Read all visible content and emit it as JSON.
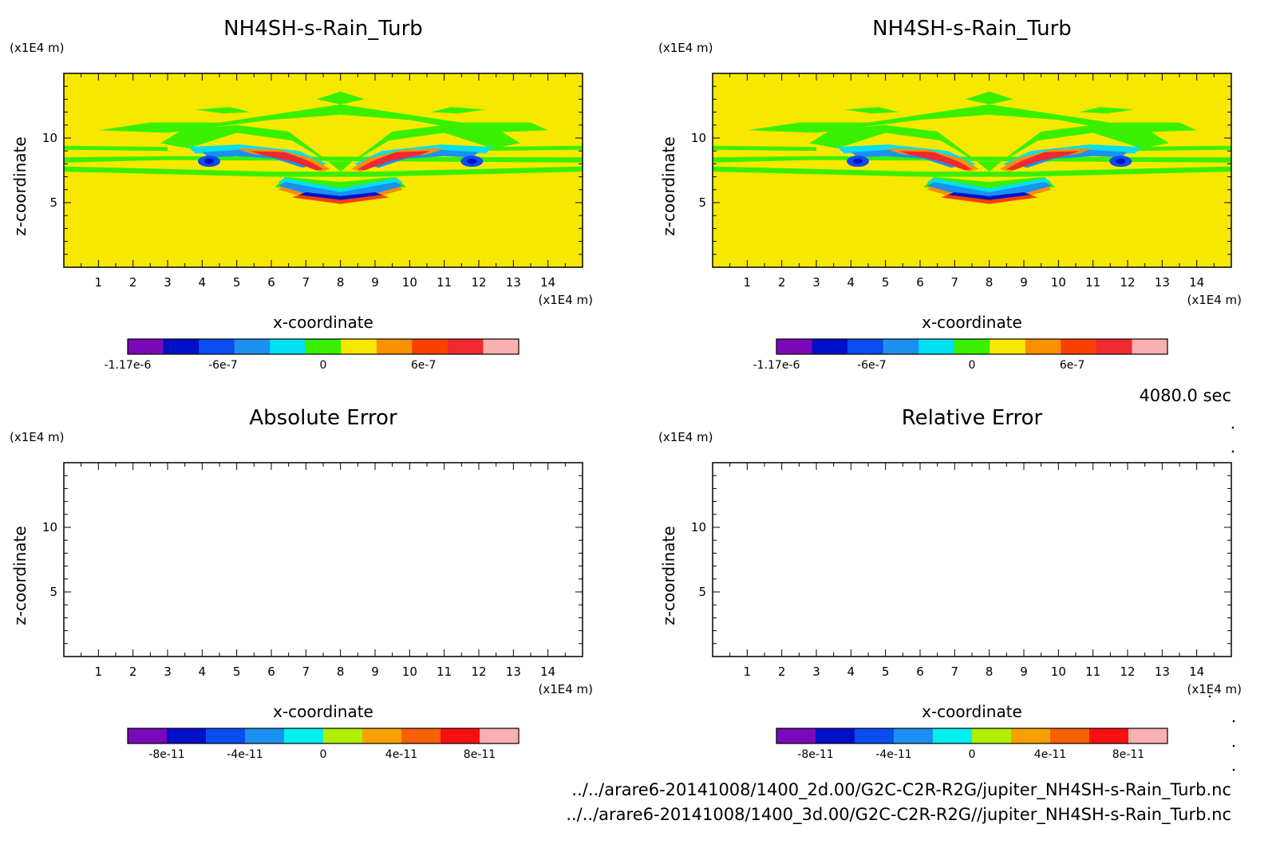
{
  "chart_data": [
    {
      "type": "heatmap",
      "title": "NH4SH-s-Rain_Turb",
      "xlabel": "x-coordinate",
      "ylabel": "z-coordinate",
      "x_unit": "(x1E4 m)",
      "y_unit": "(x1E4 m)",
      "xlim": [
        0,
        15
      ],
      "ylim": [
        0,
        15
      ],
      "x_ticks": [
        1,
        2,
        3,
        4,
        5,
        6,
        7,
        8,
        9,
        10,
        11,
        12,
        13,
        14
      ],
      "y_ticks": [
        5,
        10
      ],
      "colorbar": {
        "colors": [
          "#7a0ab8",
          "#0010c8",
          "#0a4cf0",
          "#1c90f0",
          "#00e0f0",
          "#38f000",
          "#f8e800",
          "#f89000",
          "#f84000",
          "#f02830",
          "#f8b0b0"
        ],
        "labels": [
          "-1.17e-6",
          "-6e-7",
          "0",
          "6e-7"
        ],
        "label_levels": [
          -1.17e-06,
          -6e-07,
          0,
          6e-07
        ],
        "range": [
          -1.17e-06,
          1.17e-06
        ]
      },
      "background_level": "0"
    },
    {
      "type": "heatmap",
      "title": "NH4SH-s-Rain_Turb",
      "xlabel": "x-coordinate",
      "ylabel": "z-coordinate",
      "x_unit": "(x1E4 m)",
      "y_unit": "(x1E4 m)",
      "xlim": [
        0,
        15
      ],
      "ylim": [
        0,
        15
      ],
      "x_ticks": [
        1,
        2,
        3,
        4,
        5,
        6,
        7,
        8,
        9,
        10,
        11,
        12,
        13,
        14
      ],
      "y_ticks": [
        5,
        10
      ],
      "colorbar": {
        "colors": [
          "#7a0ab8",
          "#0010c8",
          "#0a4cf0",
          "#1c90f0",
          "#00e0f0",
          "#38f000",
          "#f8e800",
          "#f89000",
          "#f84000",
          "#f02830",
          "#f8b0b0"
        ],
        "labels": [
          "-1.17e-6",
          "-6e-7",
          "0",
          "6e-7"
        ],
        "label_levels": [
          -1.17e-06,
          -6e-07,
          0,
          6e-07
        ],
        "range": [
          -1.17e-06,
          1.17e-06
        ]
      },
      "background_level": "0"
    },
    {
      "type": "heatmap",
      "title": "Absolute Error",
      "xlabel": "x-coordinate",
      "ylabel": "z-coordinate",
      "x_unit": "(x1E4 m)",
      "y_unit": "(x1E4 m)",
      "xlim": [
        0,
        15
      ],
      "ylim": [
        0,
        15
      ],
      "x_ticks": [
        1,
        2,
        3,
        4,
        5,
        6,
        7,
        8,
        9,
        10,
        11,
        12,
        13,
        14
      ],
      "y_ticks": [
        5,
        10
      ],
      "colorbar": {
        "colors": [
          "#7a0ab8",
          "#0010c8",
          "#0a4cf0",
          "#1c90f0",
          "#00f0f0",
          "#b0f000",
          "#f8a000",
          "#f86000",
          "#f81010",
          "#f8b0b0"
        ],
        "labels": [
          "-8e-11",
          "-4e-11",
          "0",
          "4e-11",
          "8e-11"
        ],
        "label_levels": [
          -8e-11,
          -4e-11,
          0,
          4e-11,
          8e-11
        ],
        "range": [
          -1e-10,
          1e-10
        ]
      },
      "background_level": "empty"
    },
    {
      "type": "heatmap",
      "title": "Relative Error",
      "xlabel": "x-coordinate",
      "ylabel": "z-coordinate",
      "x_unit": "(x1E4 m)",
      "y_unit": "(x1E4 m)",
      "xlim": [
        0,
        15
      ],
      "ylim": [
        0,
        15
      ],
      "x_ticks": [
        1,
        2,
        3,
        4,
        5,
        6,
        7,
        8,
        9,
        10,
        11,
        12,
        13,
        14
      ],
      "y_ticks": [
        5,
        10
      ],
      "colorbar": {
        "colors": [
          "#7a0ab8",
          "#0010c8",
          "#0a4cf0",
          "#1c90f0",
          "#00f0f0",
          "#b0f000",
          "#f8a000",
          "#f86000",
          "#f81010",
          "#f8b0b0"
        ],
        "labels": [
          "-8e-11",
          "-4e-11",
          "0",
          "4e-11",
          "8e-11"
        ],
        "label_levels": [
          -8e-11,
          -4e-11,
          0,
          4e-11,
          8e-11
        ],
        "range": [
          -1e-10,
          1e-10
        ]
      },
      "background_level": "empty"
    }
  ],
  "time_label": "4080.0 sec",
  "file_paths": [
    "../../arare6-20141008/1400_2d.00/G2C-C2R-R2G/jupiter_NH4SH-s-Rain_Turb.nc",
    "../../arare6-20141008/1400_3d.00/G2C-C2R-R2G//jupiter_NH4SH-s-Rain_Turb.nc"
  ]
}
